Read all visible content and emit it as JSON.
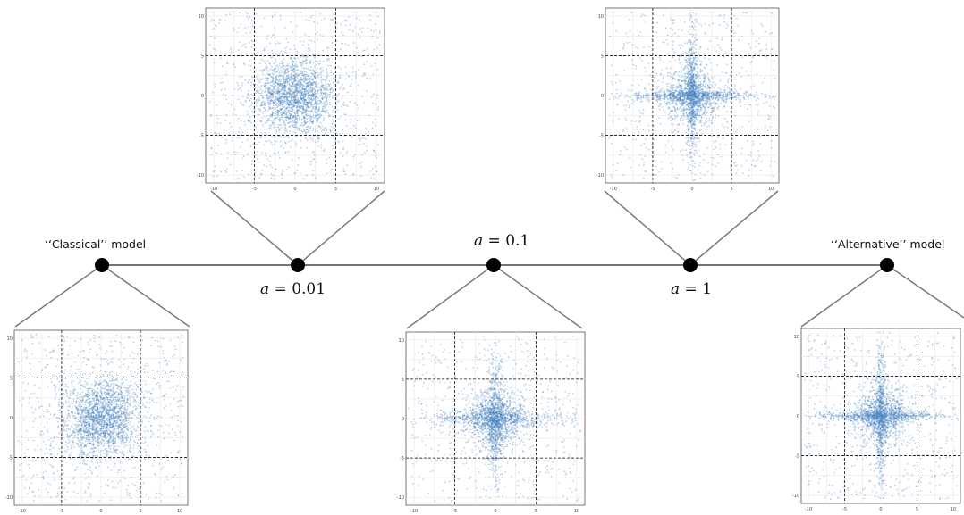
{
  "nodes": {
    "classical": {
      "label": "‘‘Classical’’ model"
    },
    "a001": {
      "symbol": "a",
      "eq": " = 0.01"
    },
    "a01": {
      "symbol": "a",
      "eq": " = 0.1"
    },
    "a1": {
      "symbol": "a",
      "eq": " = 1"
    },
    "alternative": {
      "label": "‘‘Alternative’’ model"
    }
  },
  "panels": [
    {
      "id": "classical",
      "xticks": [
        "-10",
        "-5",
        "0",
        "5",
        "10"
      ],
      "yticks": [
        "10",
        "5",
        "0",
        "-5",
        "-10"
      ],
      "shape": "round"
    },
    {
      "id": "a001",
      "xticks": [
        "-10",
        "-5",
        "0",
        "5",
        "10"
      ],
      "yticks": [
        "10",
        "5",
        "0",
        "-5",
        "-10"
      ],
      "shape": "round"
    },
    {
      "id": "a01",
      "xticks": [
        "-10",
        "-5",
        "0",
        "5",
        "10"
      ],
      "yticks": [
        "10",
        "5",
        "0",
        "-5",
        "-10"
      ],
      "shape": "star-soft"
    },
    {
      "id": "a1",
      "xticks": [
        "-10",
        "-5",
        "0",
        "5",
        "10"
      ],
      "yticks": [
        "10",
        "5",
        "0",
        "-5",
        "-10"
      ],
      "shape": "star"
    },
    {
      "id": "alternative",
      "xticks": [
        "-10",
        "-5",
        "0",
        "5",
        "10"
      ],
      "yticks": [
        "10",
        "5",
        "0",
        "-5",
        "-10"
      ],
      "shape": "star"
    }
  ],
  "colors": {
    "points": "#3f7fbf",
    "line": "#222222",
    "connector": "#7a7a7a",
    "grid": "#e2e2e2"
  }
}
